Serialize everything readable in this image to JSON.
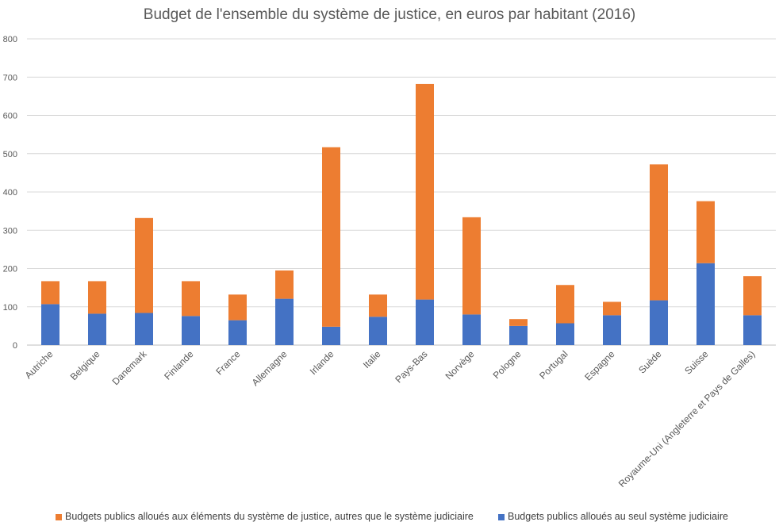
{
  "chart_data": {
    "type": "bar",
    "stacked": true,
    "title": "Budget de l'ensemble du système de justice, en euros par habitant (2016)",
    "categories": [
      "Autriche",
      "Belgique",
      "Danemark",
      "Finlande",
      "France",
      "Allemagne",
      "Irlande",
      "Italie",
      "Pays-Bas",
      "Norvège",
      "Pologne",
      "Portugal",
      "Espagne",
      "Suède",
      "Suisse",
      "Royaume-Uni (Angleterre et Pays de Galles)"
    ],
    "series": [
      {
        "name": "Budgets publics alloués au  seul système judiciaire",
        "color": "#4472C4",
        "values": [
          107,
          82,
          84,
          76,
          65,
          121,
          48,
          74,
          119,
          80,
          50,
          57,
          78,
          117,
          214,
          78
        ]
      },
      {
        "name": "Budgets publics alloués aux éléments du système de justice, autres que le système judiciaire",
        "color": "#ED7D31",
        "values": [
          60,
          85,
          248,
          91,
          67,
          74,
          469,
          58,
          563,
          254,
          18,
          100,
          35,
          355,
          162,
          102
        ]
      }
    ],
    "ylim": [
      0,
      800
    ],
    "yticks": [
      0,
      100,
      200,
      300,
      400,
      500,
      600,
      700,
      800
    ],
    "grid": true,
    "legend_position": "bottom"
  }
}
